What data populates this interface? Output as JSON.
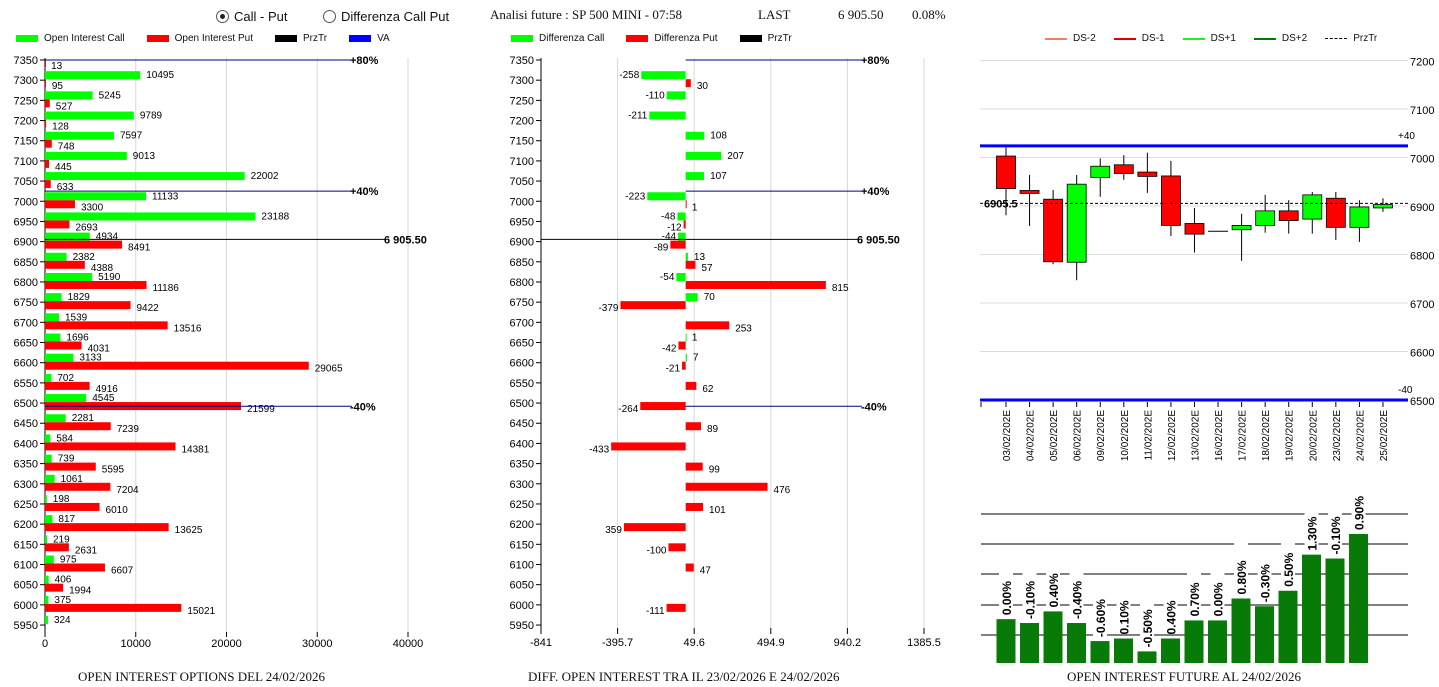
{
  "header": {
    "radio_call_put": "Call - Put",
    "radio_diff": "Differenza Call Put",
    "selected": "Call - Put",
    "title": "Analisi future : SP 500 MINI - 07:58",
    "last_label": "LAST",
    "last_value": "6 905.50",
    "change": "0.08%"
  },
  "colors": {
    "call": "#00ff00",
    "put": "#ff0000",
    "przTr": "#000000",
    "va": "#0000ff",
    "future_bar": "#087a08"
  },
  "chart_data": [
    {
      "type": "bar",
      "title": "OPEN INTEREST OPTIONS DEL 24/02/2026",
      "orientation": "horizontal",
      "legend": [
        "Open Interest Call",
        "Open Interest Put",
        "PrzTr",
        "VA"
      ],
      "legend_placement": "top",
      "categories": [
        7350,
        7300,
        7250,
        7200,
        7150,
        7100,
        7050,
        7000,
        6950,
        6900,
        6850,
        6800,
        6750,
        6700,
        6650,
        6600,
        6550,
        6500,
        6450,
        6400,
        6350,
        6300,
        6250,
        6200,
        6150,
        6100,
        6050,
        6000,
        5950
      ],
      "series": [
        {
          "name": "Open Interest Call",
          "values": [
            null,
            10495,
            5245,
            9789,
            7597,
            9013,
            22002,
            11133,
            23188,
            4934,
            2382,
            5190,
            1829,
            1539,
            1696,
            3133,
            702,
            4545,
            2281,
            584,
            739,
            1061,
            198,
            817,
            219,
            975,
            406,
            375,
            324
          ]
        },
        {
          "name": "Open Interest Put",
          "values": [
            13,
            95,
            527,
            128,
            748,
            445,
            633,
            3300,
            2693,
            8491,
            4388,
            11186,
            9422,
            13516,
            4031,
            29065,
            4916,
            21599,
            7239,
            14381,
            5595,
            7204,
            6010,
            13625,
            2631,
            6607,
            1994,
            15021,
            null
          ]
        }
      ],
      "xticks": [
        0,
        10000,
        20000,
        30000,
        40000
      ],
      "xlim": [
        0,
        40000
      ],
      "grid": true,
      "levels": [
        {
          "label": "+80%",
          "strike": 7350
        },
        {
          "label": "+40%",
          "strike": 7025
        },
        {
          "label": "-40%",
          "strike": 6492
        }
      ],
      "price": {
        "label": "6 905.50",
        "value": 6905.5
      }
    },
    {
      "type": "bar",
      "title": "DIFF. OPEN INTEREST TRA IL 23/02/2026 E 24/02/2026",
      "orientation": "horizontal",
      "legend": [
        "Differenza Call",
        "Differenza Put",
        "PrzTr"
      ],
      "legend_placement": "top",
      "categories": [
        7350,
        7300,
        7250,
        7200,
        7150,
        7100,
        7050,
        7000,
        6950,
        6900,
        6850,
        6800,
        6750,
        6700,
        6650,
        6600,
        6550,
        6500,
        6450,
        6400,
        6350,
        6300,
        6250,
        6200,
        6150,
        6100,
        6050,
        6000,
        5950
      ],
      "series": [
        {
          "name": "Differenza Call",
          "values": [
            null,
            -258,
            -110,
            -211,
            108,
            207,
            107,
            -223,
            -48,
            -44,
            13,
            -54,
            70,
            null,
            1,
            7,
            null,
            null,
            null,
            null,
            null,
            null,
            null,
            null,
            null,
            null,
            null,
            null,
            null
          ]
        },
        {
          "name": "Differenza Put",
          "values": [
            null,
            30,
            null,
            null,
            null,
            null,
            null,
            1,
            -12,
            -89,
            57,
            815,
            -379,
            253,
            -42,
            -21,
            62,
            -264,
            89,
            -433,
            99,
            476,
            101,
            -359,
            -100,
            47,
            null,
            -111,
            null
          ]
        }
      ],
      "put_labels_override": {
        "6200": "359"
      },
      "xticks": [
        "-841",
        "-395.7",
        "49.6",
        "494.9",
        "940.2",
        "1385.5"
      ],
      "xlim": [
        -841,
        1385.5
      ],
      "grid": true,
      "levels": [
        {
          "label": "+80%",
          "strike": 7350
        },
        {
          "label": "+40%",
          "strike": 7025
        },
        {
          "label": "-40%",
          "strike": 6492
        }
      ],
      "price": {
        "label": "6 905.50",
        "value": 6905.5
      }
    },
    {
      "type": "candlestick",
      "legend": [
        "DS-2",
        "DS-1",
        "DS+1",
        "DS+2",
        "PrzTr"
      ],
      "legend_colors": [
        "#f08060",
        "#e00000",
        "#22ee22",
        "#007a00",
        "#000000"
      ],
      "legend_placement": "top",
      "dates": [
        "03/02/2026",
        "04/02/2026",
        "05/02/2026",
        "06/02/2026",
        "09/02/2026",
        "10/02/2026",
        "11/02/2026",
        "12/02/2026",
        "13/02/2026",
        "16/02/2026",
        "17/02/2026",
        "18/02/2026",
        "19/02/2026",
        "20/02/2026",
        "23/02/2026",
        "24/02/2026",
        "25/02/2026"
      ],
      "date_labels": [
        "03/02/202E",
        "04/02/202E",
        "05/02/202E",
        "06/02/202E",
        "09/02/202E",
        "10/02/202E",
        "11/02/202E",
        "12/02/202E",
        "13/02/202E",
        "16/02/202E",
        "17/02/202E",
        "18/02/202E",
        "19/02/202E",
        "20/02/202E",
        "23/02/202E",
        "24/02/202E",
        "25/02/202E"
      ],
      "ohlc": [
        [
          7003,
          7021,
          6881,
          6936
        ],
        [
          6932,
          6964,
          6859,
          6926
        ],
        [
          6914,
          6933,
          6780,
          6785
        ],
        [
          6784,
          6964,
          6747,
          6945
        ],
        [
          6959,
          6998,
          6919,
          6982
        ],
        [
          6985,
          7005,
          6954,
          6967
        ],
        [
          6970,
          7010,
          6927,
          6961
        ],
        [
          6962,
          6993,
          6838,
          6860
        ],
        [
          6864,
          6896,
          6804,
          6842
        ],
        [
          6848,
          6848,
          6848,
          6848
        ],
        [
          6851,
          6884,
          6787,
          6860
        ],
        [
          6860,
          6923,
          6845,
          6890
        ],
        [
          6890,
          6912,
          6843,
          6870
        ],
        [
          6873,
          6929,
          6843,
          6923
        ],
        [
          6916,
          6929,
          6830,
          6856
        ],
        [
          6856,
          6912,
          6826,
          6898
        ],
        [
          6896,
          6916,
          6888,
          6903
        ]
      ],
      "yticks": [
        7200,
        7100,
        7000,
        6900,
        6800,
        6700,
        6600,
        6500
      ],
      "ylim": [
        6500,
        7200
      ],
      "bands": [
        {
          "label": "+40",
          "value": 7024
        },
        {
          "label": "-40",
          "value": 6500
        }
      ],
      "price": {
        "label": "6905.5",
        "value": 6905.5
      }
    },
    {
      "type": "bar",
      "title": "OPEN INTEREST FUTURE AL 24/02/2026",
      "labels": [
        "0.00%",
        "-0.10%",
        "0.40%",
        "-0.40%",
        "-0.60%",
        "0.10%",
        "-0.50%",
        "0.40%",
        "0.70%",
        "0.00%",
        "0.80%",
        "-0.30%",
        "0.50%",
        "1.30%",
        "-0.10%",
        "0.90%"
      ],
      "level_pct_of_max": [
        34,
        31,
        40,
        31,
        17,
        19,
        9,
        19,
        33,
        33,
        50,
        44,
        56,
        84,
        81,
        100
      ],
      "grid": true
    }
  ]
}
